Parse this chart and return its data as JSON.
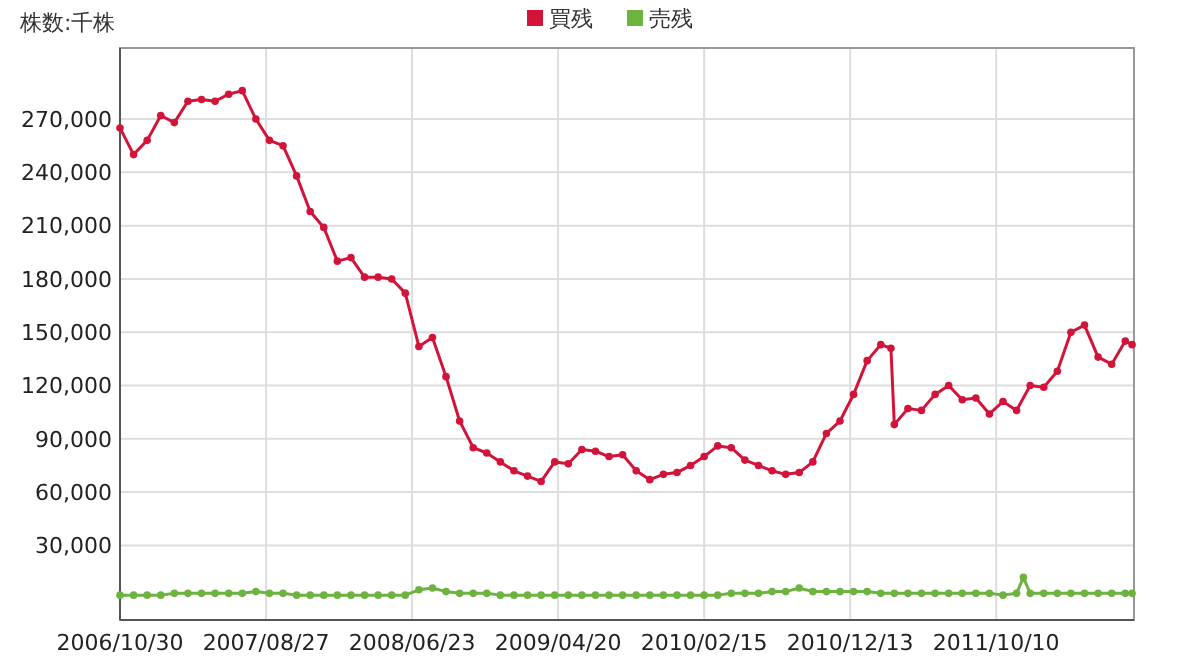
{
  "chart_data": {
    "type": "line",
    "ylabel": "株数:千株",
    "legend": "top",
    "grid": true,
    "marker": "circle",
    "line_style": "solid",
    "xlim": [
      "2006-10-30",
      "2012-07-20"
    ],
    "xticks": [
      {
        "value": "2006-10-30",
        "label": "2006/10/30"
      },
      {
        "value": "2007-08-27",
        "label": "2007/08/27"
      },
      {
        "value": "2008-06-23",
        "label": "2008/06/23"
      },
      {
        "value": "2009-04-20",
        "label": "2009/04/20"
      },
      {
        "value": "2010-02-15",
        "label": "2010/02/15"
      },
      {
        "value": "2010-12-13",
        "label": "2010/12/13"
      },
      {
        "value": "2011-10-10",
        "label": "2011/10/10"
      }
    ],
    "ylim": [
      -12000,
      310000
    ],
    "yticks": [
      {
        "value": 30000,
        "label": "30,000"
      },
      {
        "value": 60000,
        "label": "60,000"
      },
      {
        "value": 90000,
        "label": "90,000"
      },
      {
        "value": 120000,
        "label": "120,000"
      },
      {
        "value": 150000,
        "label": "150,000"
      },
      {
        "value": 180000,
        "label": "180,000"
      },
      {
        "value": 210000,
        "label": "210,000"
      },
      {
        "value": 240000,
        "label": "240,000"
      },
      {
        "value": 270000,
        "label": "270,000"
      }
    ],
    "series": [
      {
        "name": "買残",
        "color": "#d3143a",
        "x": [
          "2006-10-30",
          "2006-11-27",
          "2006-12-25",
          "2007-01-22",
          "2007-02-19",
          "2007-03-19",
          "2007-04-16",
          "2007-05-14",
          "2007-06-11",
          "2007-07-09",
          "2007-08-06",
          "2007-09-03",
          "2007-10-01",
          "2007-10-29",
          "2007-11-26",
          "2007-12-24",
          "2008-01-21",
          "2008-02-18",
          "2008-03-17",
          "2008-04-14",
          "2008-05-12",
          "2008-06-09",
          "2008-07-07",
          "2008-08-04",
          "2008-09-01",
          "2008-09-29",
          "2008-10-27",
          "2008-11-24",
          "2008-12-22",
          "2009-01-19",
          "2009-02-16",
          "2009-03-16",
          "2009-04-13",
          "2009-05-11",
          "2009-06-08",
          "2009-07-06",
          "2009-08-03",
          "2009-08-31",
          "2009-09-28",
          "2009-10-26",
          "2009-11-23",
          "2009-12-21",
          "2010-01-18",
          "2010-02-15",
          "2010-03-15",
          "2010-04-12",
          "2010-05-10",
          "2010-06-07",
          "2010-07-05",
          "2010-08-02",
          "2010-08-30",
          "2010-09-27",
          "2010-10-25",
          "2010-11-22",
          "2010-12-20",
          "2011-01-17",
          "2011-02-14",
          "2011-03-07",
          "2011-03-14",
          "2011-04-11",
          "2011-05-09",
          "2011-06-06",
          "2011-07-04",
          "2011-08-01",
          "2011-08-29",
          "2011-09-26",
          "2011-10-24",
          "2011-11-21",
          "2011-12-19",
          "2012-01-16",
          "2012-02-13",
          "2012-03-12",
          "2012-04-09",
          "2012-05-07",
          "2012-06-04",
          "2012-07-02",
          "2012-07-16"
        ],
        "values": [
          265000,
          250000,
          258000,
          272000,
          268000,
          280000,
          281000,
          280000,
          284000,
          286000,
          270000,
          258000,
          255000,
          238000,
          218000,
          209000,
          190000,
          192000,
          181000,
          181000,
          180000,
          172000,
          142000,
          147000,
          125000,
          100000,
          85000,
          82000,
          77000,
          72000,
          69000,
          66000,
          77000,
          76000,
          84000,
          83000,
          80000,
          81000,
          72000,
          67000,
          70000,
          71000,
          75000,
          80000,
          86000,
          85000,
          78000,
          75000,
          72000,
          70000,
          71000,
          77000,
          93000,
          100000,
          115000,
          134000,
          143000,
          141000,
          98000,
          107000,
          106000,
          115000,
          120000,
          112000,
          113000,
          104000,
          111000,
          106000,
          120000,
          119000,
          128000,
          150000,
          154000,
          136000,
          132000,
          145000,
          143000
        ]
      },
      {
        "name": "売残",
        "color": "#6db33f",
        "x": [
          "2006-10-30",
          "2006-11-27",
          "2006-12-25",
          "2007-01-22",
          "2007-02-19",
          "2007-03-19",
          "2007-04-16",
          "2007-05-14",
          "2007-06-11",
          "2007-07-09",
          "2007-08-06",
          "2007-09-03",
          "2007-10-01",
          "2007-10-29",
          "2007-11-26",
          "2007-12-24",
          "2008-01-21",
          "2008-02-18",
          "2008-03-17",
          "2008-04-14",
          "2008-05-12",
          "2008-06-09",
          "2008-07-07",
          "2008-08-04",
          "2008-09-01",
          "2008-09-29",
          "2008-10-27",
          "2008-11-24",
          "2008-12-22",
          "2009-01-19",
          "2009-02-16",
          "2009-03-16",
          "2009-04-13",
          "2009-05-11",
          "2009-06-08",
          "2009-07-06",
          "2009-08-03",
          "2009-08-31",
          "2009-09-28",
          "2009-10-26",
          "2009-11-23",
          "2009-12-21",
          "2010-01-18",
          "2010-02-15",
          "2010-03-15",
          "2010-04-12",
          "2010-05-10",
          "2010-06-07",
          "2010-07-05",
          "2010-08-02",
          "2010-08-30",
          "2010-09-27",
          "2010-10-25",
          "2010-11-22",
          "2010-12-20",
          "2011-01-17",
          "2011-02-14",
          "2011-03-14",
          "2011-04-11",
          "2011-05-09",
          "2011-06-06",
          "2011-07-04",
          "2011-08-01",
          "2011-08-29",
          "2011-09-26",
          "2011-10-24",
          "2011-11-21",
          "2011-12-05",
          "2011-12-19",
          "2012-01-16",
          "2012-02-13",
          "2012-03-12",
          "2012-04-09",
          "2012-05-07",
          "2012-06-04",
          "2012-07-02",
          "2012-07-16"
        ],
        "values": [
          2000,
          2000,
          2000,
          2000,
          3000,
          3000,
          3000,
          3000,
          3000,
          3000,
          4000,
          3000,
          3000,
          2000,
          2000,
          2000,
          2000,
          2000,
          2000,
          2000,
          2000,
          2000,
          5000,
          6000,
          4000,
          3000,
          3000,
          3000,
          2000,
          2000,
          2000,
          2000,
          2000,
          2000,
          2000,
          2000,
          2000,
          2000,
          2000,
          2000,
          2000,
          2000,
          2000,
          2000,
          2000,
          3000,
          3000,
          3000,
          4000,
          4000,
          6000,
          4000,
          4000,
          4000,
          4000,
          4000,
          3000,
          3000,
          3000,
          3000,
          3000,
          3000,
          3000,
          3000,
          3000,
          2000,
          3000,
          12000,
          3000,
          3000,
          3000,
          3000,
          3000,
          3000,
          3000,
          3000,
          3000
        ]
      }
    ]
  }
}
